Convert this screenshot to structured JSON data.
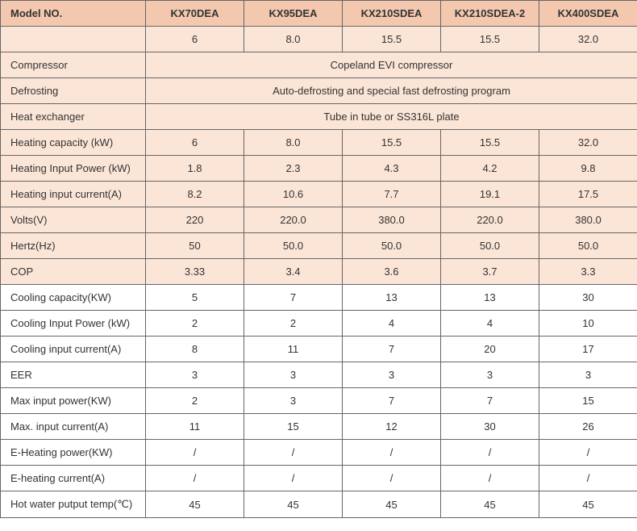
{
  "colors": {
    "header_bg": "#f3c8ae",
    "peach_bg": "#fbe5d7",
    "white_bg": "#ffffff",
    "border": "#666666",
    "text": "#333333"
  },
  "header": {
    "label": "Model NO.",
    "models": [
      "KX70DEA",
      "KX95DEA",
      "KX210SDEA",
      "KX210SDEA-2",
      "KX400SDEA"
    ]
  },
  "rows": [
    {
      "type": "values",
      "shade": "peach",
      "label": "",
      "values": [
        "6",
        "8.0",
        "15.5",
        "15.5",
        "32.0"
      ]
    },
    {
      "type": "span",
      "shade": "peach",
      "label": "Compressor",
      "span_value": "Copeland EVI compressor"
    },
    {
      "type": "span",
      "shade": "peach",
      "label": "Defrosting",
      "span_value": "Auto-defrosting and special fast defrosting program"
    },
    {
      "type": "span",
      "shade": "peach",
      "label": "Heat exchanger",
      "span_value": "Tube in tube or SS316L plate"
    },
    {
      "type": "values",
      "shade": "peach",
      "label": "Heating capacity (kW)",
      "values": [
        "6",
        "8.0",
        "15.5",
        "15.5",
        "32.0"
      ]
    },
    {
      "type": "values",
      "shade": "peach",
      "label": "Heating Input Power (kW)",
      "values": [
        "1.8",
        "2.3",
        "4.3",
        "4.2",
        "9.8"
      ]
    },
    {
      "type": "values",
      "shade": "peach",
      "label": "Heating input  current(A)",
      "values": [
        "8.2",
        "10.6",
        "7.7",
        "19.1",
        "17.5"
      ]
    },
    {
      "type": "values",
      "shade": "peach",
      "label": "Volts(V)",
      "values": [
        "220",
        "220.0",
        "380.0",
        "220.0",
        "380.0"
      ]
    },
    {
      "type": "values",
      "shade": "peach",
      "label": "Hertz(Hz)",
      "values": [
        "50",
        "50.0",
        "50.0",
        "50.0",
        "50.0"
      ]
    },
    {
      "type": "values",
      "shade": "peach",
      "label": "COP",
      "values": [
        "3.33",
        "3.4",
        "3.6",
        "3.7",
        "3.3"
      ]
    },
    {
      "type": "values",
      "shade": "white",
      "label": "Cooling capacity(KW)",
      "values": [
        "5",
        "7",
        "13",
        "13",
        "30"
      ]
    },
    {
      "type": "values",
      "shade": "white",
      "label": "Cooling Input Power (kW)",
      "values": [
        "2",
        "2",
        "4",
        "4",
        "10"
      ]
    },
    {
      "type": "values",
      "shade": "white",
      "label": "Cooling  input  current(A)",
      "values": [
        "8",
        "11",
        "7",
        "20",
        "17"
      ]
    },
    {
      "type": "values",
      "shade": "white",
      "label": "EER",
      "values": [
        "3",
        "3",
        "3",
        "3",
        "3"
      ]
    },
    {
      "type": "values",
      "shade": "white",
      "label": "Max input power(KW)",
      "values": [
        "2",
        "3",
        "7",
        "7",
        "15"
      ]
    },
    {
      "type": "values",
      "shade": "white",
      "label": "Max. input  current(A)",
      "values": [
        "11",
        "15",
        "12",
        "30",
        "26"
      ]
    },
    {
      "type": "values",
      "shade": "white",
      "label": "E-Heating power(KW)",
      "values": [
        "/",
        "/",
        "/",
        "/",
        "/"
      ]
    },
    {
      "type": "values",
      "shade": "white",
      "label": "E-heating current(A)",
      "values": [
        "/",
        "/",
        "/",
        "/",
        "/"
      ]
    },
    {
      "type": "values",
      "shade": "white",
      "label": "Hot water putput temp(℃)",
      "values": [
        "45",
        "45",
        "45",
        "45",
        "45"
      ]
    }
  ]
}
